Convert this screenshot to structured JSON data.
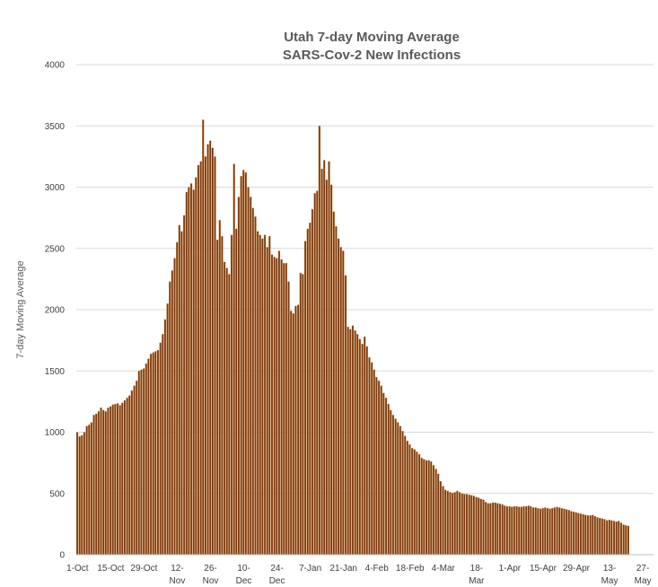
{
  "chart_data": {
    "type": "bar",
    "title": "Utah 7-day Moving Average",
    "subtitle": "SARS-Cov-2 New Infections",
    "xlabel": "",
    "ylabel": "7-day Moving Average",
    "ylim": [
      0,
      4000
    ],
    "yticks": [
      "0",
      "500",
      "1000",
      "1500",
      "2000",
      "2500",
      "3000",
      "3500",
      "4000"
    ],
    "grid": true,
    "legend": "none",
    "bar_color": "#7b3a12",
    "bar_edge_color": "#e8b06a",
    "x_start": "1-Oct",
    "x_end": "1-Jun",
    "x_tick_labels": [
      {
        "day": 0,
        "lines": [
          "1-Oct"
        ]
      },
      {
        "day": 14,
        "lines": [
          "15-Oct"
        ]
      },
      {
        "day": 28,
        "lines": [
          "29-Oct"
        ]
      },
      {
        "day": 42,
        "lines": [
          "12-",
          "Nov"
        ]
      },
      {
        "day": 56,
        "lines": [
          "26-",
          "Nov"
        ]
      },
      {
        "day": 70,
        "lines": [
          "10-",
          "Dec"
        ]
      },
      {
        "day": 84,
        "lines": [
          "24-",
          "Dec"
        ]
      },
      {
        "day": 98,
        "lines": [
          "7-Jan"
        ]
      },
      {
        "day": 112,
        "lines": [
          "21-Jan"
        ]
      },
      {
        "day": 126,
        "lines": [
          "4-Feb"
        ]
      },
      {
        "day": 140,
        "lines": [
          "18-Feb"
        ]
      },
      {
        "day": 154,
        "lines": [
          "4-Mar"
        ]
      },
      {
        "day": 168,
        "lines": [
          "18-",
          "Mar"
        ]
      },
      {
        "day": 182,
        "lines": [
          "1-Apr"
        ]
      },
      {
        "day": 196,
        "lines": [
          "15-Apr"
        ]
      },
      {
        "day": 210,
        "lines": [
          "29-Apr"
        ]
      },
      {
        "day": 224,
        "lines": [
          "13-",
          "May"
        ]
      },
      {
        "day": 238,
        "lines": [
          "27-",
          "May"
        ]
      }
    ],
    "values": [
      1000,
      965,
      975,
      1000,
      1050,
      1060,
      1080,
      1140,
      1150,
      1170,
      1200,
      1180,
      1170,
      1200,
      1210,
      1225,
      1230,
      1235,
      1220,
      1240,
      1260,
      1280,
      1300,
      1340,
      1380,
      1420,
      1500,
      1510,
      1520,
      1560,
      1600,
      1640,
      1650,
      1660,
      1670,
      1730,
      1800,
      1920,
      2050,
      2230,
      2320,
      2420,
      2550,
      2690,
      2640,
      2770,
      2960,
      3000,
      3030,
      2980,
      3080,
      3180,
      3210,
      3550,
      3250,
      3350,
      3380,
      3320,
      3250,
      2570,
      2730,
      2600,
      2390,
      2340,
      2290,
      2610,
      3190,
      2660,
      2920,
      3090,
      3140,
      3120,
      3000,
      2920,
      2830,
      2760,
      2640,
      2610,
      2580,
      2610,
      2510,
      2600,
      2450,
      2430,
      2420,
      2480,
      2410,
      2380,
      2380,
      2230,
      1990,
      1970,
      2030,
      2040,
      2300,
      2290,
      2560,
      2660,
      2710,
      2820,
      2950,
      2970,
      3500,
      3150,
      3220,
      3060,
      3210,
      3020,
      2800,
      2680,
      2580,
      2510,
      2480,
      2280,
      1860,
      1840,
      1870,
      1830,
      1800,
      1760,
      1720,
      1780,
      1700,
      1610,
      1570,
      1510,
      1450,
      1420,
      1380,
      1320,
      1280,
      1230,
      1180,
      1140,
      1110,
      1080,
      1050,
      1010,
      970,
      930,
      900,
      870,
      860,
      840,
      820,
      790,
      780,
      770,
      770,
      760,
      730,
      700,
      660,
      600,
      560,
      530,
      520,
      510,
      505,
      510,
      520,
      510,
      500,
      495,
      495,
      490,
      485,
      480,
      470,
      465,
      455,
      450,
      430,
      420,
      420,
      425,
      425,
      420,
      415,
      410,
      400,
      395,
      395,
      390,
      395,
      395,
      390,
      390,
      395,
      395,
      400,
      395,
      385,
      385,
      380,
      375,
      380,
      385,
      380,
      375,
      380,
      385,
      390,
      385,
      380,
      375,
      370,
      365,
      355,
      350,
      345,
      340,
      335,
      330,
      325,
      320,
      320,
      325,
      315,
      305,
      300,
      295,
      290,
      280,
      285,
      280,
      275,
      270,
      275,
      260,
      245,
      240,
      235
    ]
  }
}
